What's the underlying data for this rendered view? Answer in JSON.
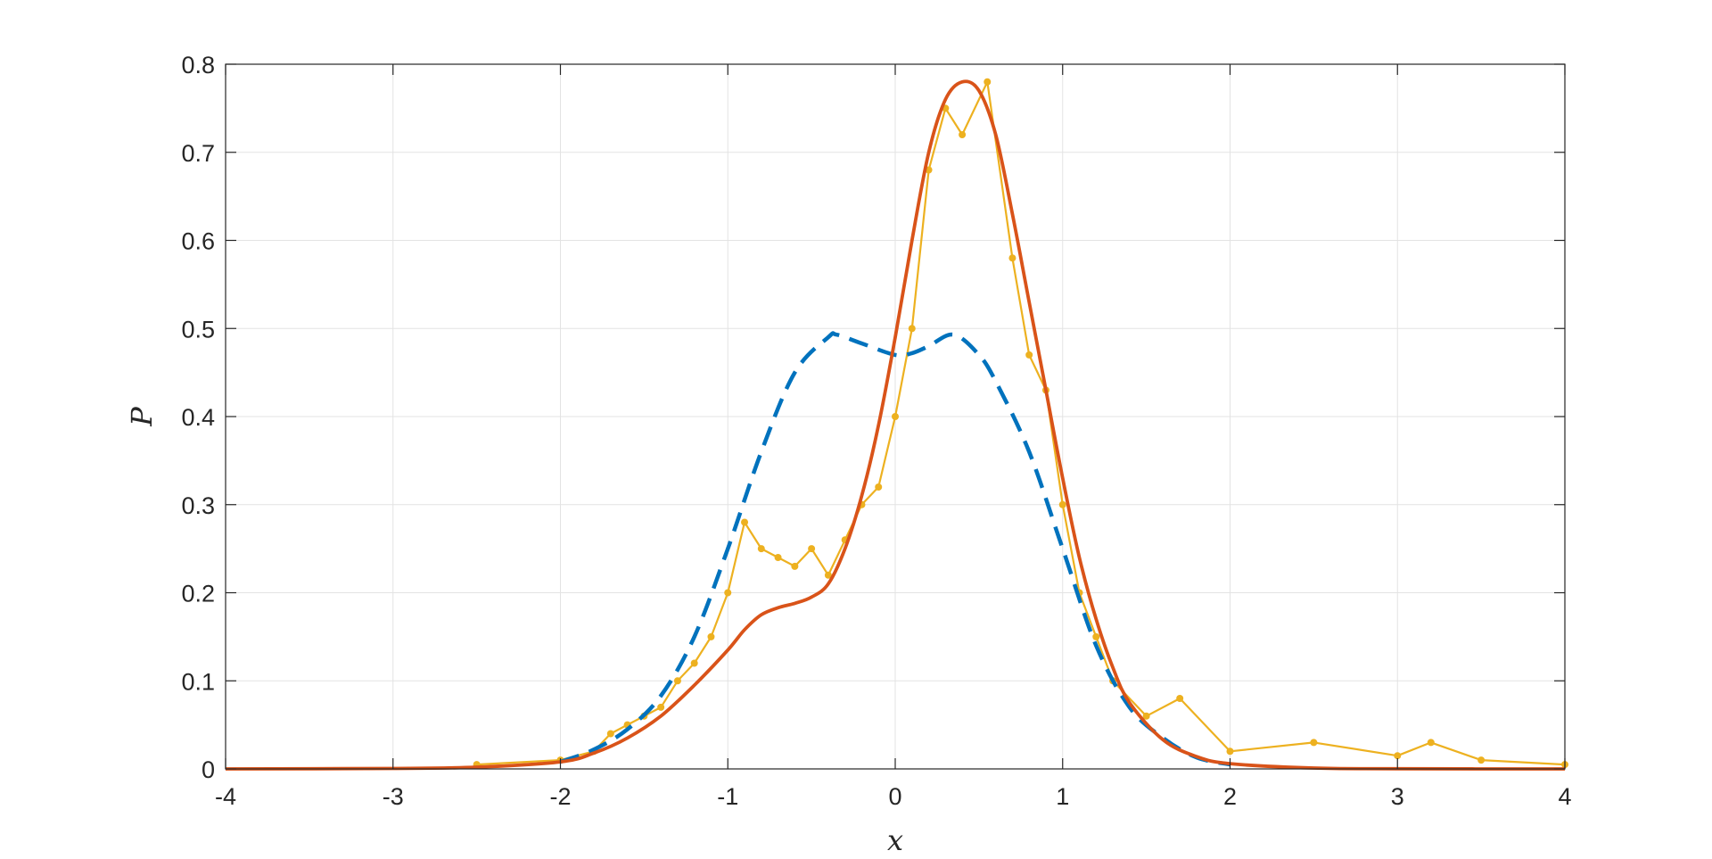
{
  "chart_data": {
    "type": "line",
    "title": "",
    "xlabel": "x",
    "ylabel": "P",
    "xlim": [
      -4,
      4
    ],
    "ylim": [
      0,
      0.8
    ],
    "grid": true,
    "legend": "none",
    "x_ticks": [
      -4,
      -3,
      -2,
      -1,
      0,
      1,
      2,
      3,
      4
    ],
    "x_tick_labels": [
      "-4",
      "-3",
      "-2",
      "-1",
      "0",
      "1",
      "2",
      "3",
      "4"
    ],
    "y_ticks": [
      0,
      0.1,
      0.2,
      0.3,
      0.4,
      0.5,
      0.6,
      0.7,
      0.8
    ],
    "y_tick_labels": [
      "0",
      "0.1",
      "0.2",
      "0.3",
      "0.4",
      "0.5",
      "0.6",
      "0.7",
      "0.8"
    ],
    "series": [
      {
        "style": "dashed",
        "color": "#0072BD",
        "x": [
          -2.0,
          -1.8,
          -1.6,
          -1.4,
          -1.2,
          -1.0,
          -0.8,
          -0.6,
          -0.4,
          -0.35,
          -0.2,
          0.0,
          0.1,
          0.2,
          0.35,
          0.5,
          0.6,
          0.8,
          1.0,
          1.2,
          1.4,
          1.6,
          1.8,
          2.0
        ],
        "y": [
          0.008,
          0.022,
          0.045,
          0.083,
          0.15,
          0.25,
          0.36,
          0.45,
          0.49,
          0.493,
          0.483,
          0.47,
          0.472,
          0.48,
          0.493,
          0.47,
          0.44,
          0.36,
          0.25,
          0.14,
          0.07,
          0.035,
          0.013,
          0.005
        ]
      },
      {
        "style": "solid",
        "color": "#D95319",
        "x": [
          -4.0,
          -3.0,
          -2.5,
          -2.0,
          -1.8,
          -1.6,
          -1.4,
          -1.2,
          -1.0,
          -0.9,
          -0.8,
          -0.7,
          -0.6,
          -0.5,
          -0.4,
          -0.3,
          -0.2,
          -0.1,
          0.0,
          0.1,
          0.2,
          0.3,
          0.4,
          0.5,
          0.6,
          0.7,
          0.8,
          0.9,
          1.0,
          1.1,
          1.2,
          1.3,
          1.4,
          1.6,
          1.8,
          2.0,
          2.5,
          3.0,
          4.0
        ],
        "y": [
          0.0,
          0.0005,
          0.002,
          0.008,
          0.018,
          0.035,
          0.06,
          0.095,
          0.135,
          0.158,
          0.175,
          0.183,
          0.188,
          0.195,
          0.21,
          0.25,
          0.31,
          0.39,
          0.49,
          0.6,
          0.7,
          0.76,
          0.78,
          0.77,
          0.72,
          0.63,
          0.53,
          0.43,
          0.33,
          0.24,
          0.17,
          0.115,
          0.075,
          0.033,
          0.014,
          0.006,
          0.001,
          0.0002,
          0.0
        ]
      },
      {
        "style": "solid-markers",
        "color": "#EDB120",
        "x": [
          -2.5,
          -2.0,
          -1.8,
          -1.7,
          -1.6,
          -1.5,
          -1.4,
          -1.3,
          -1.2,
          -1.1,
          -1.0,
          -0.9,
          -0.8,
          -0.7,
          -0.6,
          -0.5,
          -0.4,
          -0.3,
          -0.2,
          -0.1,
          0.0,
          0.1,
          0.2,
          0.3,
          0.4,
          0.55,
          0.7,
          0.8,
          0.9,
          1.0,
          1.1,
          1.2,
          1.3,
          1.5,
          1.7,
          2.0,
          2.5,
          3.0,
          3.2,
          3.5,
          4.0
        ],
        "y": [
          0.005,
          0.01,
          0.02,
          0.04,
          0.05,
          0.06,
          0.07,
          0.1,
          0.12,
          0.15,
          0.2,
          0.28,
          0.25,
          0.24,
          0.23,
          0.25,
          0.22,
          0.26,
          0.3,
          0.32,
          0.4,
          0.5,
          0.68,
          0.75,
          0.72,
          0.78,
          0.58,
          0.47,
          0.43,
          0.3,
          0.2,
          0.15,
          0.1,
          0.06,
          0.08,
          0.02,
          0.03,
          0.015,
          0.03,
          0.01,
          0.005
        ]
      }
    ]
  }
}
